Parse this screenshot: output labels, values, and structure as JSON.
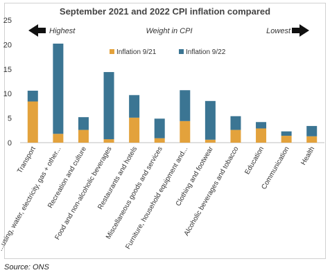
{
  "chart_data": {
    "type": "bar",
    "stacked": true,
    "title": "September 2021 and 2022 CPI inflation compared",
    "annotations": {
      "left": "Highest",
      "center": "Weight in CPI",
      "right": "Lowest"
    },
    "categories": [
      "Transport",
      "...using, water, electricity, gas + other...",
      "Recreation and culture",
      "Food and non-alcoholic beverages",
      "Restaurants and hotels",
      "Miscellaneous goods and services",
      "Furniture, household equipment and...",
      "Clothing and footwear",
      "Alcoholic beverages and tobacco",
      "Education",
      "Communication",
      "Health"
    ],
    "series": [
      {
        "name": "Inflation 9/21",
        "color": "#e3a23c",
        "values": [
          8.4,
          1.8,
          2.6,
          0.7,
          5.1,
          0.9,
          4.4,
          0.6,
          2.6,
          2.9,
          1.4,
          1.3
        ]
      },
      {
        "name": "Inflation 9/22",
        "color": "#3b7593",
        "values": [
          2.2,
          18.4,
          2.6,
          13.7,
          4.6,
          4.0,
          6.3,
          7.9,
          2.8,
          1.3,
          0.9,
          2.1
        ]
      }
    ],
    "yticks": [
      0,
      5,
      10,
      15,
      20,
      25
    ],
    "ylim": [
      0,
      25
    ],
    "legend_position": "top-center",
    "gridlines": false
  },
  "source": "Source: ONS"
}
